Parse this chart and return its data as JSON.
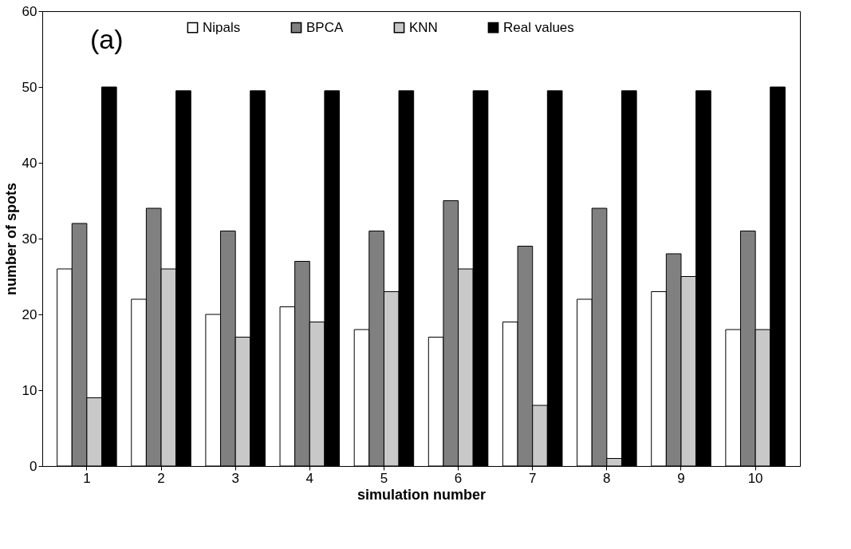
{
  "chart_data": {
    "type": "bar",
    "xlabel": "simulation number",
    "ylabel": "number of spots",
    "categories": [
      "1",
      "2",
      "3",
      "4",
      "5",
      "6",
      "7",
      "8",
      "9",
      "10"
    ],
    "series": [
      {
        "name": "Nipals",
        "color": "#ffffff",
        "values": [
          26,
          22,
          20,
          21,
          18,
          17,
          19,
          22,
          23,
          18
        ]
      },
      {
        "name": "BPCA",
        "color": "#808080",
        "values": [
          32,
          34,
          31,
          27,
          31,
          35,
          29,
          34,
          28,
          31
        ]
      },
      {
        "name": "KNN",
        "color": "#c8c8c8",
        "values": [
          9,
          26,
          17,
          19,
          23,
          26,
          8,
          1,
          25,
          18
        ]
      },
      {
        "name": "Real values",
        "color": "#000000",
        "values": [
          50,
          49.5,
          49.5,
          49.5,
          49.5,
          49.5,
          49.5,
          49.5,
          49.5,
          50
        ]
      }
    ],
    "ylim": [
      0,
      60
    ],
    "yticks": [
      0,
      10,
      20,
      30,
      40,
      50,
      60
    ],
    "grid": false,
    "legend": "top",
    "annotations": [
      "(a)"
    ]
  }
}
